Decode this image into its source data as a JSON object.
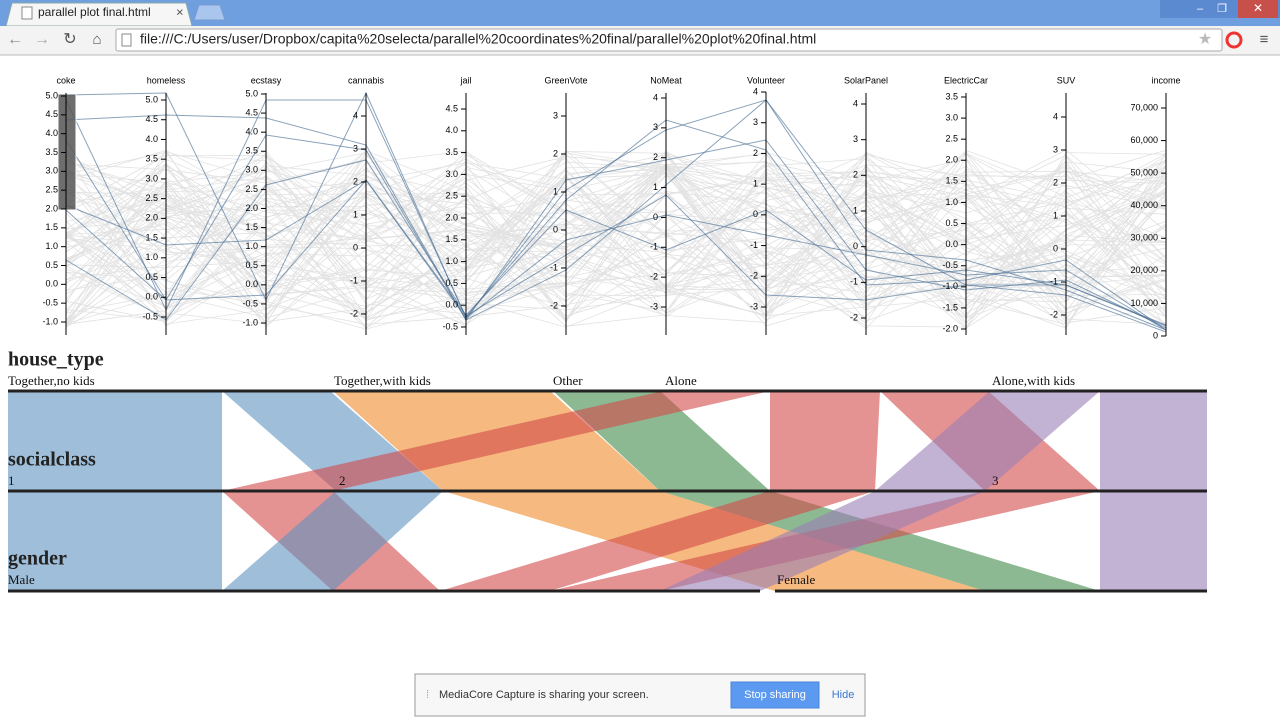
{
  "browser": {
    "tab_title": "parallel plot final.html",
    "url": "file:///C:/Users/user/Dropbox/capita%20selecta/parallel%20coordinates%20final/parallel%20plot%20final.html"
  },
  "parallel_coordinates": {
    "axes": [
      {
        "name": "coke",
        "ticks": [
          "5.0",
          "4.5",
          "4.0",
          "3.5",
          "3.0",
          "2.5",
          "2.0",
          "1.5",
          "1.0",
          "0.5",
          "0.0",
          "-0.5",
          "-1.0"
        ]
      },
      {
        "name": "homeless",
        "ticks": [
          "5.0",
          "4.5",
          "4.0",
          "3.5",
          "3.0",
          "2.5",
          "2.0",
          "1.5",
          "1.0",
          "0.5",
          "0.0",
          "-0.5"
        ]
      },
      {
        "name": "ecstasy",
        "ticks": [
          "5.0",
          "4.5",
          "4.0",
          "3.5",
          "3.0",
          "2.5",
          "2.0",
          "1.5",
          "1.0",
          "0.5",
          "0.0",
          "-0.5",
          "-1.0"
        ]
      },
      {
        "name": "cannabis",
        "ticks": [
          "4",
          "3",
          "2",
          "1",
          "0",
          "-1",
          "-2"
        ]
      },
      {
        "name": "jail",
        "ticks": [
          "4.5",
          "4.0",
          "3.5",
          "3.0",
          "2.5",
          "2.0",
          "1.5",
          "1.0",
          "0.5",
          "0.0",
          "-0.5"
        ]
      },
      {
        "name": "GreenVote",
        "ticks": [
          "3",
          "2",
          "1",
          "0",
          "-1",
          "-2"
        ]
      },
      {
        "name": "NoMeat",
        "ticks": [
          "4",
          "3",
          "2",
          "1",
          "0",
          "-1",
          "-2",
          "-3"
        ]
      },
      {
        "name": "Volunteer",
        "ticks": [
          "4",
          "3",
          "2",
          "1",
          "0",
          "-1",
          "-2",
          "-3"
        ]
      },
      {
        "name": "SolarPanel",
        "ticks": [
          "4",
          "3",
          "2",
          "1",
          "0",
          "-1",
          "-2"
        ]
      },
      {
        "name": "ElectricCar",
        "ticks": [
          "3.5",
          "3.0",
          "2.5",
          "2.0",
          "1.5",
          "1.0",
          "0.5",
          "0.0",
          "-0.5",
          "-1.0",
          "-1.5",
          "-2.0"
        ]
      },
      {
        "name": "SUV",
        "ticks": [
          "4",
          "3",
          "2",
          "1",
          "0",
          "-1",
          "-2"
        ]
      },
      {
        "name": "income",
        "ticks": [
          "70,000",
          "60,000",
          "50,000",
          "40,000",
          "30,000",
          "20,000",
          "10,000",
          "0"
        ]
      }
    ]
  },
  "parallel_sets": {
    "dimensions": [
      {
        "name": "house_type",
        "categories": [
          "Together,no kids",
          "Together,with kids",
          "Other",
          "Alone",
          "Alone,with kids"
        ]
      },
      {
        "name": "socialclass",
        "categories": [
          "1",
          "2",
          "3"
        ]
      },
      {
        "name": "gender",
        "categories": [
          "Male",
          "Female"
        ]
      }
    ]
  },
  "notification": {
    "message": "MediaCore Capture is sharing your screen.",
    "buttons": [
      "Stop sharing",
      "Hide"
    ]
  }
}
